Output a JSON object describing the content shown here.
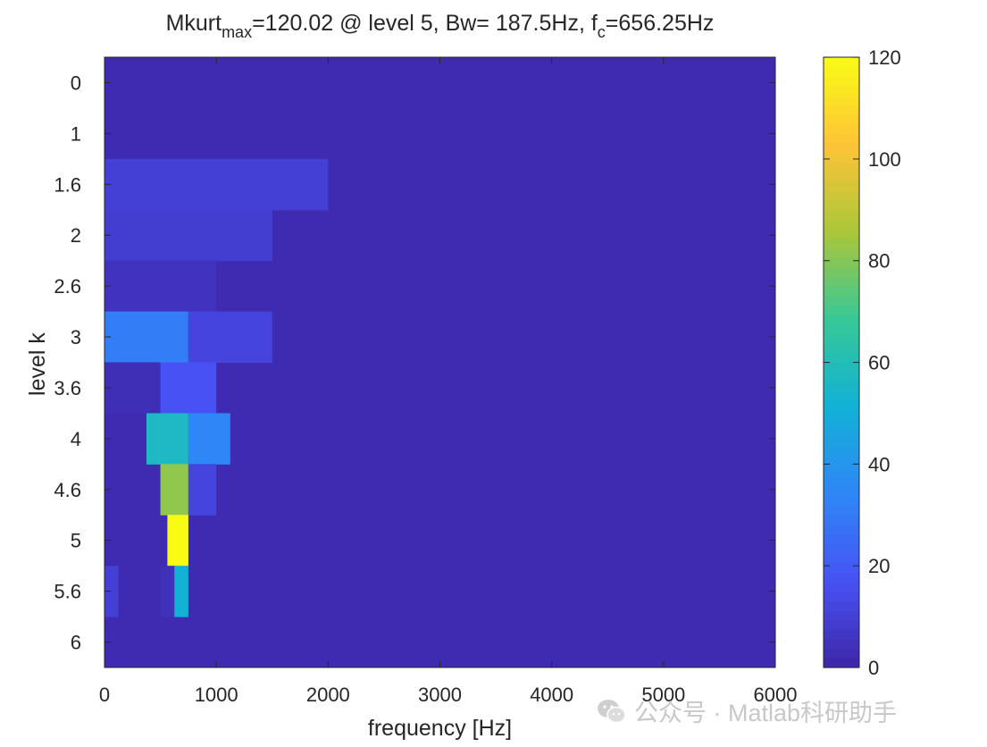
{
  "title": {
    "mk": "Mkurt",
    "max_sub": "max",
    "mid": "=120.02 @ level 5, Bw= 187.5Hz, f",
    "c_sub": "c",
    "tail": "=656.25Hz"
  },
  "watermark": {
    "icon": "wechat-icon",
    "text": "公众号 · Matlab科研助手"
  },
  "chart_data": {
    "type": "heatmap",
    "xlabel": "frequency [Hz]",
    "ylabel": "level k",
    "xlim": [
      0,
      6000
    ],
    "xticks": [
      0,
      1000,
      2000,
      3000,
      4000,
      5000,
      6000
    ],
    "levels": [
      "0",
      "1",
      "1.6",
      "2",
      "2.6",
      "3",
      "3.6",
      "4",
      "4.6",
      "5",
      "5.6",
      "6"
    ],
    "segments_per_level": [
      1,
      2,
      3,
      4,
      6,
      8,
      12,
      16,
      24,
      32,
      48,
      64
    ],
    "background_value": 2,
    "nonzero_cells": [
      {
        "level": "1.6",
        "x_range": [
          0,
          2000
        ],
        "value": 10
      },
      {
        "level": "2",
        "x_range": [
          0,
          1500
        ],
        "value": 9
      },
      {
        "level": "2.6",
        "x_range": [
          0,
          1000
        ],
        "value": 5
      },
      {
        "level": "3",
        "x_range": [
          0,
          750
        ],
        "value": 31
      },
      {
        "level": "3",
        "x_range": [
          750,
          1500
        ],
        "value": 12
      },
      {
        "level": "3.6",
        "x_range": [
          0,
          500
        ],
        "value": 3
      },
      {
        "level": "3.6",
        "x_range": [
          500,
          1000
        ],
        "value": 17
      },
      {
        "level": "4",
        "x_range": [
          375,
          750
        ],
        "value": 57
      },
      {
        "level": "4",
        "x_range": [
          750,
          1125
        ],
        "value": 34
      },
      {
        "level": "4.6",
        "x_range": [
          500,
          750
        ],
        "value": 82
      },
      {
        "level": "4.6",
        "x_range": [
          750,
          1000
        ],
        "value": 12
      },
      {
        "level": "5",
        "x_range": [
          562.5,
          750
        ],
        "value": 120.02
      },
      {
        "level": "5.6",
        "x_range": [
          0,
          125
        ],
        "value": 10
      },
      {
        "level": "5.6",
        "x_range": [
          500,
          625
        ],
        "value": 4
      },
      {
        "level": "5.6",
        "x_range": [
          625,
          750
        ],
        "value": 52
      }
    ],
    "colorbar": {
      "min": 0,
      "max": 120.02,
      "ticks": [
        0,
        20,
        40,
        60,
        80,
        100,
        120
      ],
      "colormap": "parula"
    },
    "grid": false,
    "legend": "none"
  }
}
